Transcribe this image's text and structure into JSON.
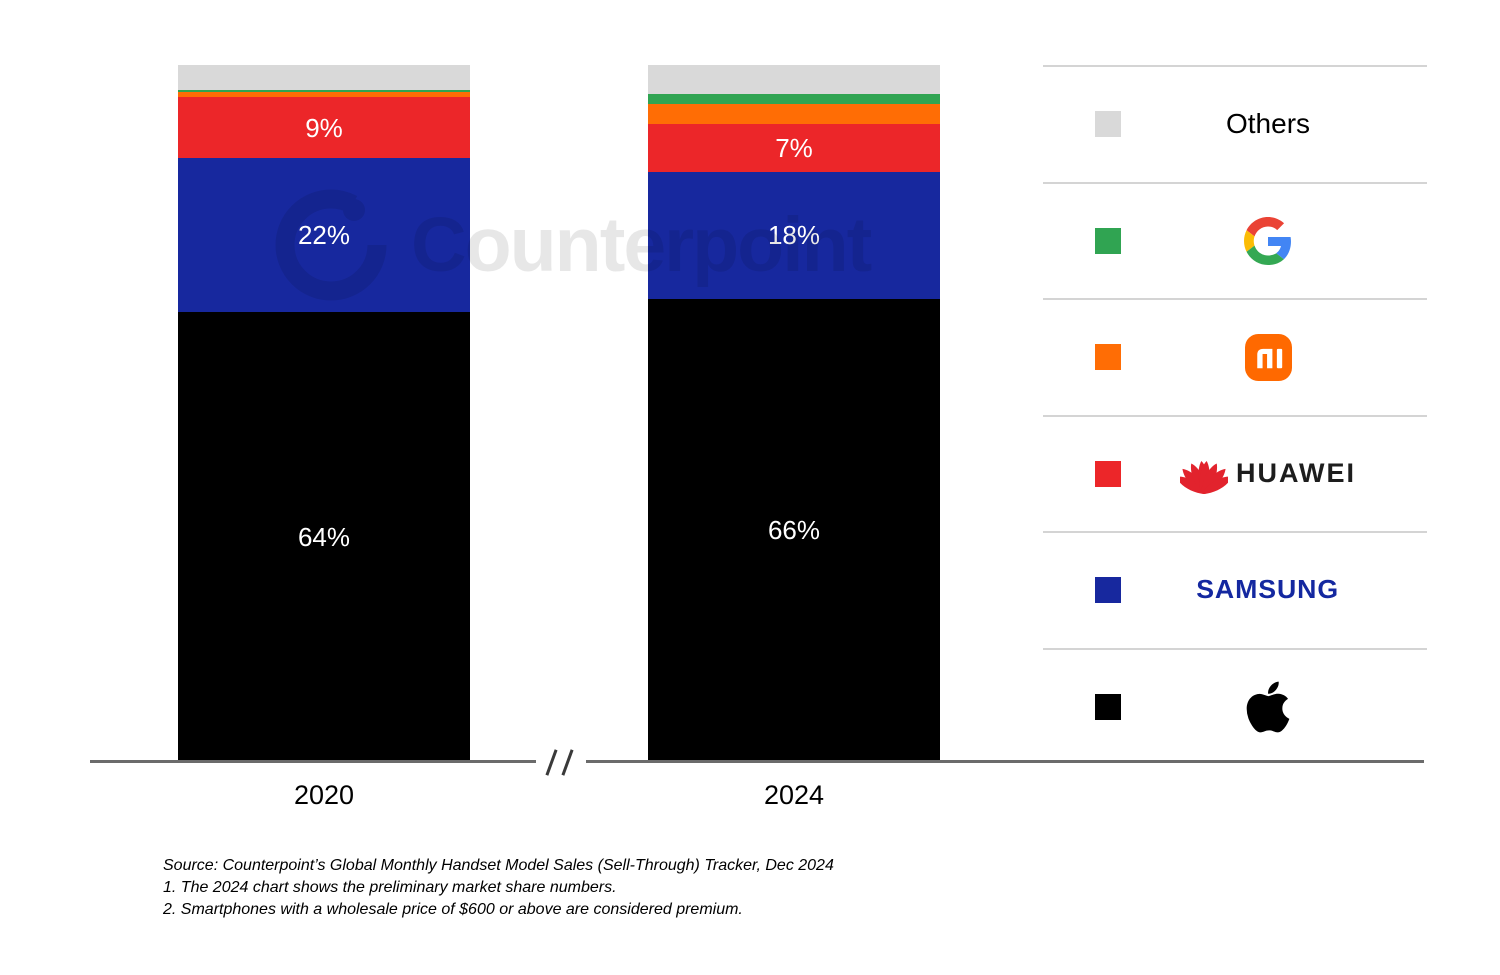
{
  "watermark": {
    "text": "Counterpoint"
  },
  "chart_data": {
    "type": "bar",
    "subtype": "stacked-100-percent-column",
    "title": "",
    "unit": "%",
    "categories": [
      "2020",
      "2024"
    ],
    "series_order": "top-to-bottom",
    "series": [
      {
        "name": "Others",
        "color": "#d9d9d9",
        "values": [
          3.6,
          4.2
        ],
        "labels": [
          "",
          ""
        ]
      },
      {
        "name": "Google",
        "color": "#30a452",
        "values": [
          0.3,
          1.4
        ],
        "labels": [
          "",
          ""
        ]
      },
      {
        "name": "Xiaomi",
        "color": "#ff6d05",
        "values": [
          0.7,
          2.8
        ],
        "labels": [
          "",
          ""
        ]
      },
      {
        "name": "Huawei",
        "color": "#ec2629",
        "values": [
          8.8,
          7.0
        ],
        "labels": [
          "9%",
          "7%"
        ]
      },
      {
        "name": "Samsung",
        "color": "#17289e",
        "values": [
          22.1,
          18.1
        ],
        "labels": [
          "22%",
          "18%"
        ]
      },
      {
        "name": "Apple",
        "color": "#000000",
        "values": [
          64.5,
          66.5
        ],
        "labels": [
          "64%",
          "66%"
        ]
      }
    ],
    "shown_value_labels": {
      "2020": {
        "Huawei": "9%",
        "Samsung": "22%",
        "Apple": "64%"
      },
      "2024": {
        "Huawei": "7%",
        "Samsung": "18%",
        "Apple": "66%"
      }
    },
    "x_axis": {
      "labels": [
        "2020",
        "2024"
      ],
      "break_symbol": "/ /"
    },
    "grid": false,
    "legend_position": "right"
  },
  "legend": {
    "items": [
      {
        "brand": "Others",
        "color": "#d9d9d9",
        "label": "Others"
      },
      {
        "brand": "Google",
        "color": "#30a452",
        "label": "Google"
      },
      {
        "brand": "Xiaomi",
        "color": "#ff6d05",
        "label": "Mi"
      },
      {
        "brand": "Huawei",
        "color": "#ec2629",
        "label": "HUAWEI"
      },
      {
        "brand": "Samsung",
        "color": "#17289e",
        "label": "SAMSUNG"
      },
      {
        "brand": "Apple",
        "color": "#000000",
        "label": "Apple"
      }
    ]
  },
  "footnotes": {
    "source": "Source: Counterpoint’s Global Monthly Handset Model Sales (Sell-Through) Tracker, Dec 2024",
    "note1": "1. The 2024 chart shows the preliminary market share numbers.",
    "note2": "2. Smartphones with a wholesale price of $600 or above are considered premium."
  }
}
